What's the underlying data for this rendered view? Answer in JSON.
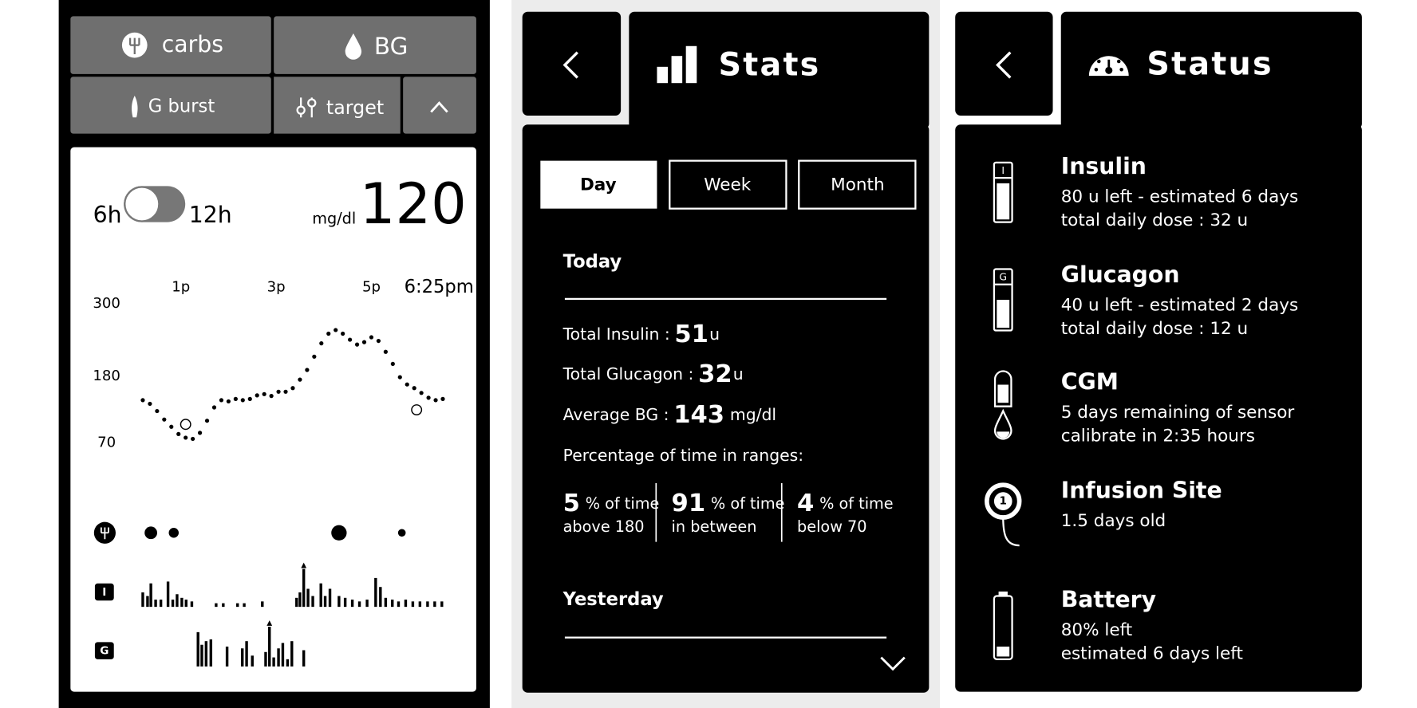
{
  "home": {
    "buttons": {
      "carbs": "carbs",
      "bg": "BG",
      "g_burst": "G burst",
      "target": "target"
    },
    "toggle": {
      "left": "6h",
      "right": "12h"
    },
    "unit": "mg/dl",
    "current_bg": 120,
    "insulin_icon": "I",
    "glucagon_icon": "G"
  },
  "chart_data": {
    "type": "scatter",
    "x": [
      12.2,
      12.35,
      12.5,
      12.65,
      12.8,
      12.95,
      13.1,
      13.25,
      13.4,
      13.55,
      13.7,
      13.85,
      14,
      14.15,
      14.3,
      14.45,
      14.6,
      14.75,
      14.9,
      15.05,
      15.2,
      15.35,
      15.5,
      15.65,
      15.8,
      15.95,
      16.1,
      16.25,
      16.4,
      16.55,
      16.7,
      16.85,
      17,
      17.15,
      17.3,
      17.45,
      17.6,
      17.75,
      17.9,
      18.05,
      18.2,
      18.35,
      18.5
    ],
    "values": [
      140,
      134,
      122,
      108,
      96,
      84,
      78,
      76,
      86,
      106,
      128,
      140,
      138,
      142,
      140,
      142,
      148,
      150,
      147,
      154,
      154,
      160,
      174,
      190,
      212,
      234,
      250,
      256,
      250,
      240,
      232,
      236,
      244,
      238,
      220,
      200,
      178,
      166,
      160,
      152,
      144,
      140,
      142
    ],
    "color": "#000000",
    "xlim": [
      12.2,
      18.5
    ],
    "xticks": [
      {
        "value": 13,
        "label": "1p"
      },
      {
        "value": 15,
        "label": "3p"
      },
      {
        "value": 17,
        "label": "5p"
      },
      {
        "value": 18.42,
        "label": "6:25pm"
      }
    ],
    "ylim": [
      70,
      300
    ],
    "yticks": [
      70,
      180,
      300
    ],
    "grid": false,
    "calibration": {
      "x": [
        13.1,
        17.95
      ],
      "values": [
        100,
        124
      ]
    },
    "carbs": {
      "x": [
        12.37,
        12.85,
        16.32,
        17.64
      ],
      "values": [
        40,
        25,
        60,
        15
      ]
    },
    "insulin": {
      "x": [
        12.2,
        12.3,
        12.37,
        12.47,
        12.58,
        12.73,
        12.83,
        12.92,
        13.02,
        13.11,
        13.23,
        13.74,
        13.89,
        14.19,
        14.33,
        14.71,
        15.43,
        15.5,
        15.58,
        15.67,
        15.77,
        15.94,
        16.03,
        16.13,
        16.32,
        16.45,
        16.6,
        16.75,
        16.91,
        17.09,
        17.19,
        17.3,
        17.44,
        17.57,
        17.72,
        17.87,
        18.02,
        18.18,
        18.33,
        18.48
      ],
      "values": [
        0.4,
        0.3,
        0.65,
        0.2,
        0.2,
        0.7,
        0.2,
        0.35,
        0.25,
        0.2,
        0.15,
        0.1,
        0.1,
        0.1,
        0.1,
        0.15,
        0.25,
        0.4,
        1.05,
        0.5,
        0.3,
        0.65,
        0.3,
        0.5,
        0.3,
        0.25,
        0.2,
        0.15,
        0.2,
        0.8,
        0.55,
        0.25,
        0.2,
        0.15,
        0.2,
        0.15,
        0.15,
        0.15,
        0.15,
        0.15
      ]
    },
    "glucagon": {
      "x": [
        13.36,
        13.44,
        13.53,
        13.63,
        13.97,
        14.29,
        14.38,
        14.5,
        14.78,
        14.86,
        14.95,
        15.05,
        15.14,
        15.24,
        15.33,
        15.58
      ],
      "values": [
        0.95,
        0.6,
        0.7,
        0.75,
        0.55,
        0.5,
        0.7,
        0.3,
        0.4,
        1.1,
        0.25,
        0.5,
        0.65,
        0.2,
        0.7,
        0.45
      ]
    }
  },
  "stats": {
    "title": "Stats",
    "tabs": [
      "Day",
      "Week",
      "Month"
    ],
    "today": "Today",
    "total_insulin": {
      "label": "Total Insulin :",
      "value": 51,
      "unit": "u"
    },
    "total_glucagon": {
      "label": "Total Glucagon :",
      "value": 32,
      "unit": "u"
    },
    "average_bg": {
      "label": "Average BG :",
      "value": 143,
      "unit": "mg/dl"
    },
    "ranges_title": "Percentage of time in ranges:",
    "ranges": [
      {
        "value": 5,
        "unit": "% of time",
        "desc": "above 180"
      },
      {
        "value": 91,
        "unit": "% of time",
        "desc": "in between"
      },
      {
        "value": 4,
        "unit": "% of time",
        "desc": "below 70"
      }
    ],
    "yesterday": "Yesterday"
  },
  "status": {
    "title": "Status",
    "items": [
      {
        "name": "Insulin",
        "icon": "I",
        "lines": [
          "80 u left - estimated 6 days",
          "total daily dose : 32 u"
        ]
      },
      {
        "name": "Glucagon",
        "icon": "G",
        "lines": [
          "40 u left - estimated 2 days",
          "total daily dose : 12 u"
        ]
      },
      {
        "name": "CGM",
        "lines": [
          "5 days remaining of sensor",
          "calibrate in 2:35 hours"
        ]
      },
      {
        "name": "Infusion Site",
        "icon": "1",
        "lines": [
          "1.5 days old"
        ]
      },
      {
        "name": "Battery",
        "lines": [
          "80% left",
          "estimated 6 days left"
        ]
      }
    ]
  }
}
